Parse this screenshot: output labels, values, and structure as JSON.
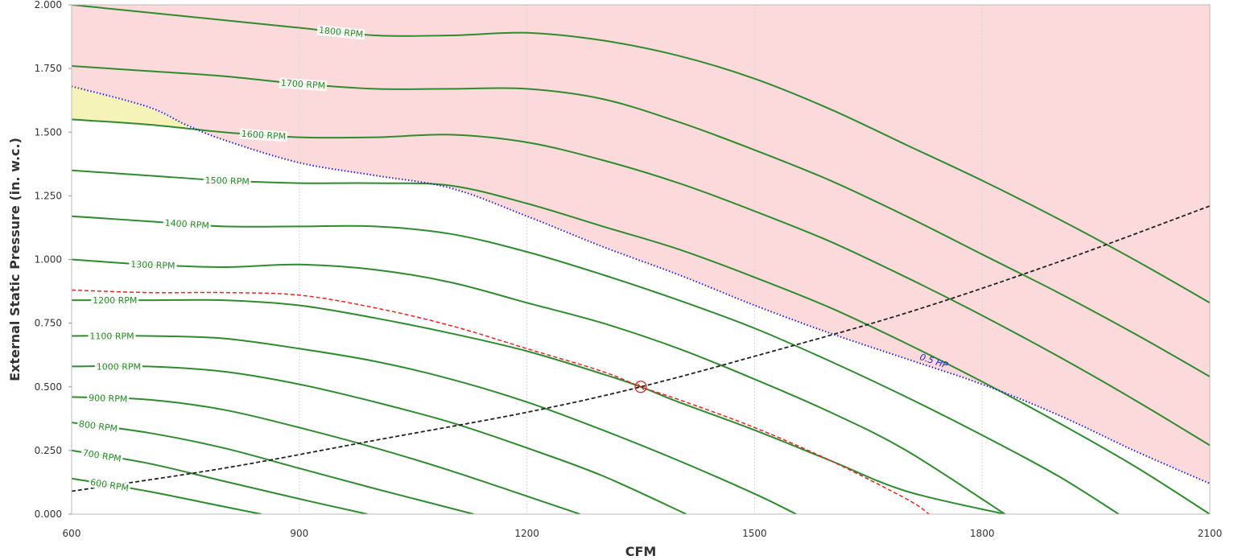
{
  "chart_data": {
    "type": "line",
    "title": "",
    "xlabel": "CFM",
    "ylabel": "External Static Pressure (in. w.c.)",
    "xlim": [
      600,
      2100
    ],
    "ylim": [
      0,
      2
    ],
    "x_ticks": [
      "600",
      "900",
      "1200",
      "1500",
      "1800",
      "2100"
    ],
    "y_ticks": [
      "0.000",
      "0.250",
      "0.500",
      "0.750",
      "1.000",
      "1.250",
      "1.500",
      "1.750",
      "2.000"
    ],
    "grid": "vertical",
    "colors": {
      "fan_curve": "#2e8b2e",
      "selected_curve": "#ee2222",
      "system_curve": "#222222",
      "hp_limit": "#2222dd",
      "over_limit_region": "#fcd9da",
      "warning_region": "#f6f3b8"
    },
    "fan_curves": [
      {
        "label": "600 RPM",
        "x": [
          600,
          700,
          800,
          850
        ],
        "y": [
          0.14,
          0.09,
          0.03,
          0.0
        ]
      },
      {
        "label": "700 RPM",
        "x": [
          600,
          700,
          800,
          900,
          990
        ],
        "y": [
          0.25,
          0.2,
          0.13,
          0.06,
          0.0
        ]
      },
      {
        "label": "800 RPM",
        "x": [
          600,
          700,
          800,
          900,
          1000,
          1130
        ],
        "y": [
          0.36,
          0.32,
          0.26,
          0.18,
          0.1,
          0.0
        ]
      },
      {
        "label": "900 RPM",
        "x": [
          600,
          700,
          800,
          900,
          1000,
          1100,
          1270
        ],
        "y": [
          0.46,
          0.45,
          0.41,
          0.34,
          0.26,
          0.17,
          0.0
        ]
      },
      {
        "label": "1000 RPM",
        "x": [
          600,
          700,
          800,
          900,
          1000,
          1100,
          1200,
          1300,
          1410
        ],
        "y": [
          0.58,
          0.58,
          0.56,
          0.51,
          0.44,
          0.36,
          0.26,
          0.15,
          0.0
        ]
      },
      {
        "label": "1100 RPM",
        "x": [
          600,
          700,
          800,
          900,
          1000,
          1100,
          1200,
          1300,
          1400,
          1500,
          1555
        ],
        "y": [
          0.7,
          0.7,
          0.69,
          0.65,
          0.6,
          0.53,
          0.44,
          0.33,
          0.21,
          0.08,
          0.0
        ]
      },
      {
        "label": "1200 RPM",
        "x": [
          600,
          700,
          800,
          900,
          1000,
          1100,
          1200,
          1300,
          1350,
          1400,
          1500,
          1600,
          1700,
          1830
        ],
        "y": [
          0.84,
          0.84,
          0.84,
          0.82,
          0.77,
          0.71,
          0.64,
          0.55,
          0.5,
          0.44,
          0.33,
          0.21,
          0.09,
          0.0
        ]
      },
      {
        "label": "1300 RPM",
        "x": [
          600,
          700,
          800,
          900,
          1000,
          1100,
          1200,
          1300,
          1400,
          1500,
          1600,
          1700,
          1830
        ],
        "y": [
          1.0,
          0.98,
          0.97,
          0.98,
          0.96,
          0.91,
          0.83,
          0.75,
          0.65,
          0.53,
          0.4,
          0.25,
          0.0
        ]
      },
      {
        "label": "1400 RPM",
        "x": [
          600,
          700,
          800,
          900,
          1000,
          1100,
          1200,
          1300,
          1400,
          1500,
          1600,
          1700,
          1800,
          1900,
          1980
        ],
        "y": [
          1.17,
          1.15,
          1.13,
          1.13,
          1.13,
          1.1,
          1.03,
          0.94,
          0.84,
          0.73,
          0.6,
          0.46,
          0.31,
          0.15,
          0.0
        ]
      },
      {
        "label": "1500 RPM",
        "x": [
          600,
          700,
          800,
          900,
          1000,
          1100,
          1200,
          1300,
          1400,
          1500,
          1600,
          1700,
          1800,
          1900,
          2000,
          2100
        ],
        "y": [
          1.35,
          1.33,
          1.31,
          1.3,
          1.3,
          1.29,
          1.22,
          1.13,
          1.04,
          0.93,
          0.81,
          0.67,
          0.52,
          0.36,
          0.19,
          0.0
        ]
      },
      {
        "label": "1600 RPM",
        "x": [
          600,
          700,
          800,
          900,
          1000,
          1100,
          1200,
          1300,
          1400,
          1500,
          1600,
          1700,
          1800,
          1900,
          2000,
          2100
        ],
        "y": [
          1.55,
          1.53,
          1.5,
          1.48,
          1.48,
          1.49,
          1.46,
          1.39,
          1.3,
          1.19,
          1.07,
          0.93,
          0.78,
          0.62,
          0.45,
          0.27
        ]
      },
      {
        "label": "1700 RPM",
        "x": [
          600,
          700,
          800,
          900,
          1000,
          1100,
          1200,
          1300,
          1400,
          1500,
          1600,
          1700,
          1800,
          1900,
          2000,
          2100
        ],
        "y": [
          1.76,
          1.74,
          1.72,
          1.69,
          1.67,
          1.67,
          1.67,
          1.63,
          1.54,
          1.43,
          1.31,
          1.17,
          1.02,
          0.87,
          0.71,
          0.54
        ]
      },
      {
        "label": "1800 RPM",
        "x": [
          600,
          700,
          800,
          900,
          1000,
          1100,
          1200,
          1300,
          1400,
          1500,
          1600,
          1700,
          1800,
          1900,
          2000,
          2100
        ],
        "y": [
          2.0,
          1.97,
          1.94,
          1.91,
          1.88,
          1.88,
          1.89,
          1.86,
          1.8,
          1.71,
          1.59,
          1.45,
          1.31,
          1.16,
          1.0,
          0.83
        ]
      }
    ],
    "selected_curve": {
      "x": [
        600,
        700,
        800,
        900,
        1000,
        1100,
        1200,
        1300,
        1350,
        1400,
        1500,
        1600,
        1700,
        1730
      ],
      "y": [
        0.88,
        0.87,
        0.87,
        0.86,
        0.81,
        0.74,
        0.65,
        0.56,
        0.5,
        0.45,
        0.34,
        0.21,
        0.06,
        0.0
      ]
    },
    "system_curve": {
      "x": [
        600,
        800,
        1000,
        1200,
        1350,
        1500,
        1700,
        1900,
        2100
      ],
      "y": [
        0.09,
        0.18,
        0.29,
        0.4,
        0.5,
        0.62,
        0.79,
        0.99,
        1.21
      ]
    },
    "hp_limit": {
      "label": "0.5 HP",
      "x": [
        600,
        700,
        750,
        800,
        900,
        1000,
        1100,
        1200,
        1300,
        1400,
        1500,
        1600,
        1700,
        1800,
        1900,
        2000,
        2100
      ],
      "y": [
        1.68,
        1.6,
        1.53,
        1.47,
        1.38,
        1.33,
        1.28,
        1.17,
        1.05,
        0.94,
        0.82,
        0.71,
        0.61,
        0.51,
        0.39,
        0.25,
        0.12
      ]
    },
    "operating_point": {
      "x": 1350,
      "y": 0.5
    }
  }
}
